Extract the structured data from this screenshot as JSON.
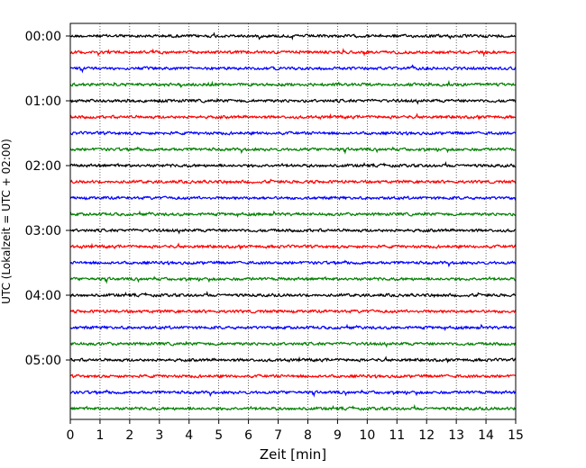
{
  "chart_data": {
    "type": "line",
    "title": "",
    "xlabel": "Zeit  [min]",
    "ylabel": "UTC (Lokalzeit = UTC + 02:00)",
    "xlim": [
      0,
      15
    ],
    "x_ticks": [
      "0",
      "1",
      "2",
      "3",
      "4",
      "5",
      "6",
      "7",
      "8",
      "9",
      "10",
      "11",
      "12",
      "13",
      "14",
      "15"
    ],
    "y_tick_labels": [
      "00:00",
      "01:00",
      "02:00",
      "03:00",
      "04:00",
      "05:00"
    ],
    "grid": "vertical dotted lines at each minute",
    "trace_interval_minutes": 15,
    "trace_count": 24,
    "trace_colors": [
      "#000000",
      "#ff0000",
      "#0000ff",
      "#008000"
    ]
  }
}
